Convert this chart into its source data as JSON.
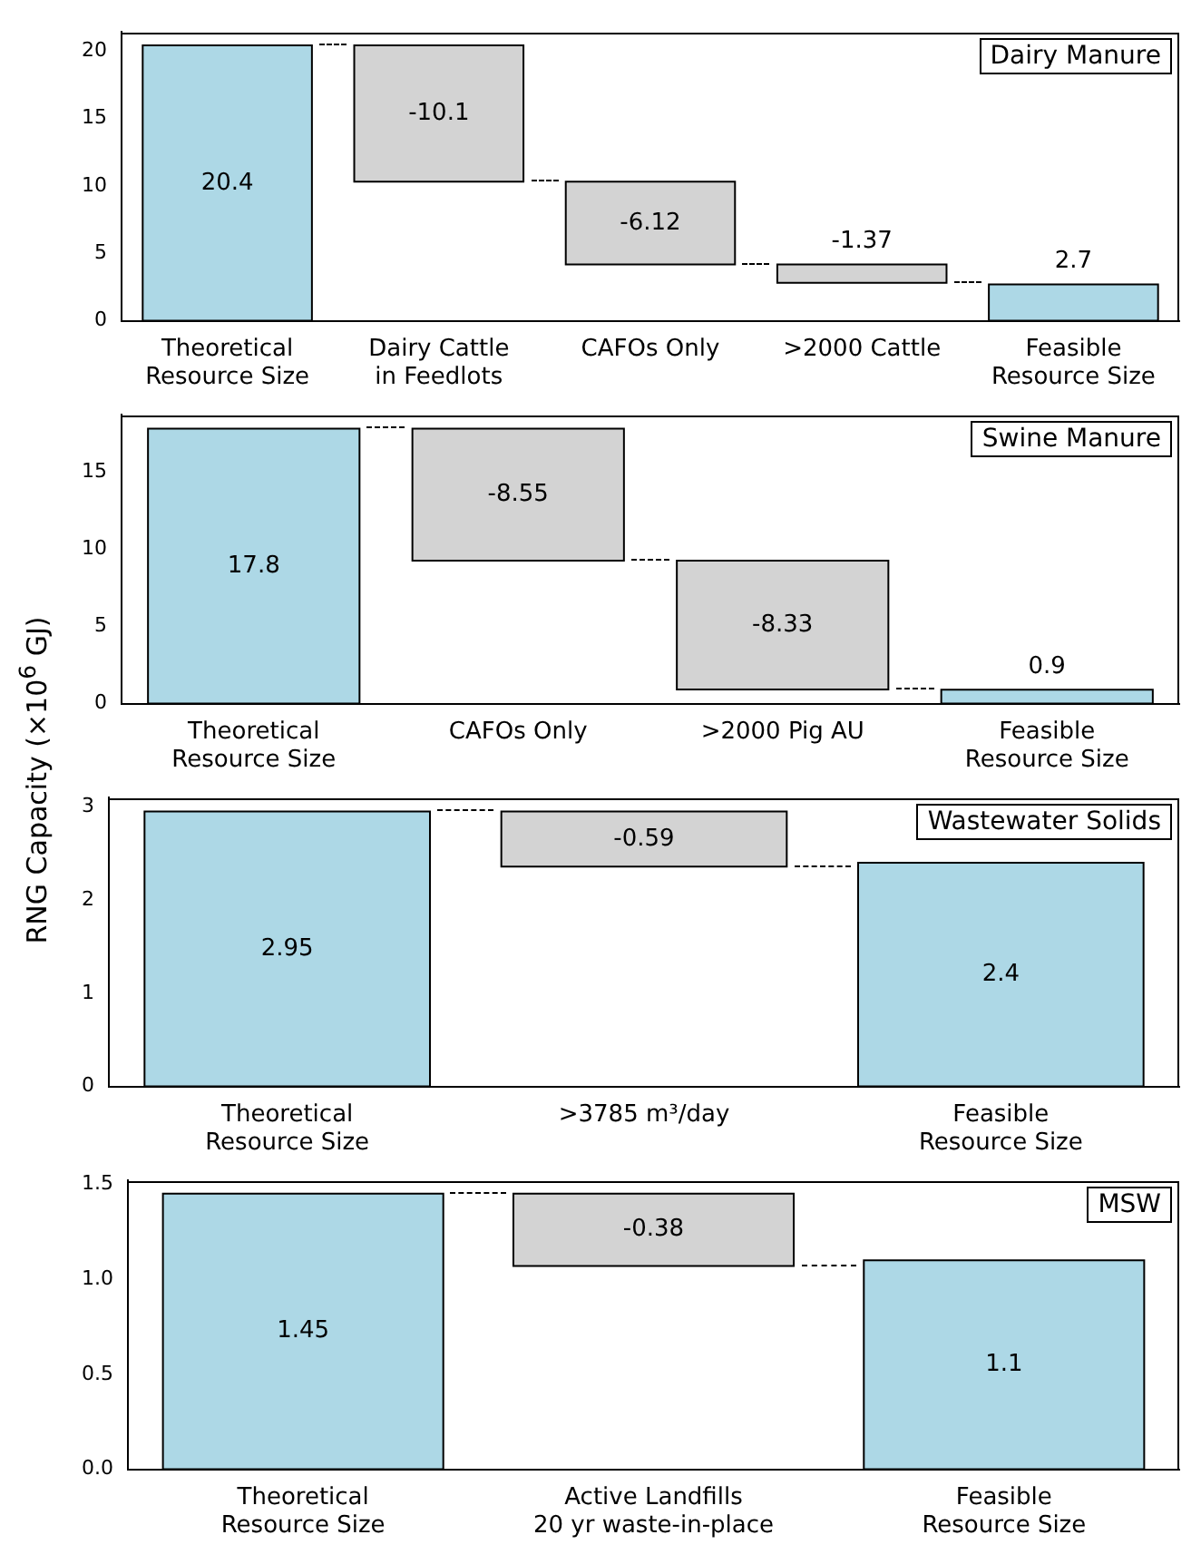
{
  "chart_data": [
    {
      "type": "bar",
      "categories": [
        "Theoretical\nResource Size",
        "Dairy Cattle\nin Feedlots",
        "CAFOs Only",
        ">2000 Cattle",
        "Feasible\nResource Size"
      ],
      "values": [
        20.4,
        -10.1,
        -6.12,
        -1.37,
        2.7
      ],
      "base": [
        null,
        20.4,
        10.3,
        4.18,
        null
      ],
      "colors": [
        "#add8e6",
        "#d3d3d3",
        "#d3d3d3",
        "#d3d3d3",
        "#add8e6"
      ],
      "ylim": [
        0,
        21.4
      ],
      "yticks": [
        0,
        5,
        10,
        15,
        20
      ],
      "data_labels": true,
      "annotations": [
        "Dairy Manure"
      ],
      "grid": false,
      "legend": false
    },
    {
      "type": "bar",
      "categories": [
        "Theoretical\nResource Size",
        "CAFOs Only",
        ">2000 Pig AU",
        "Feasible\nResource Size"
      ],
      "values": [
        17.8,
        -8.55,
        -8.33,
        0.9
      ],
      "base": [
        null,
        17.8,
        9.25,
        null
      ],
      "colors": [
        "#add8e6",
        "#d3d3d3",
        "#d3d3d3",
        "#add8e6"
      ],
      "ylim": [
        0,
        18.7
      ],
      "yticks": [
        0,
        5,
        10,
        15
      ],
      "data_labels": true,
      "annotations": [
        "Swine Manure"
      ],
      "ylabel": "RNG Capacity (×10$^{6}$ GJ)",
      "grid": false,
      "legend": false
    },
    {
      "type": "bar",
      "categories": [
        "Theoretical\nResource Size",
        ">3785 m³/day",
        "Feasible\nResource Size"
      ],
      "values": [
        2.95,
        -0.59,
        2.4
      ],
      "base": [
        null,
        2.95,
        null
      ],
      "colors": [
        "#add8e6",
        "#d3d3d3",
        "#add8e6"
      ],
      "ylim": [
        0,
        3.1
      ],
      "yticks": [
        0,
        1,
        2,
        3
      ],
      "data_labels": true,
      "annotations": [
        "Wastewater Solids"
      ],
      "grid": false,
      "legend": false
    },
    {
      "type": "bar",
      "categories": [
        "Theoretical\nResource Size",
        "Active Landfills\n20 yr waste-in-place",
        "Feasible\nResource Size"
      ],
      "values": [
        1.45,
        -0.38,
        1.1
      ],
      "base": [
        null,
        1.45,
        null
      ],
      "colors": [
        "#add8e6",
        "#d3d3d3",
        "#add8e6"
      ],
      "ylim": [
        0,
        1.52
      ],
      "yticks": [
        {
          "value": 0,
          "label": "0.0"
        },
        {
          "value": 0.5,
          "label": "0.5"
        },
        {
          "value": 1,
          "label": "1.0"
        },
        {
          "value": 1.5,
          "label": "1.5"
        }
      ],
      "data_labels": true,
      "annotations": [
        "MSW"
      ],
      "grid": false,
      "legend": false
    }
  ]
}
